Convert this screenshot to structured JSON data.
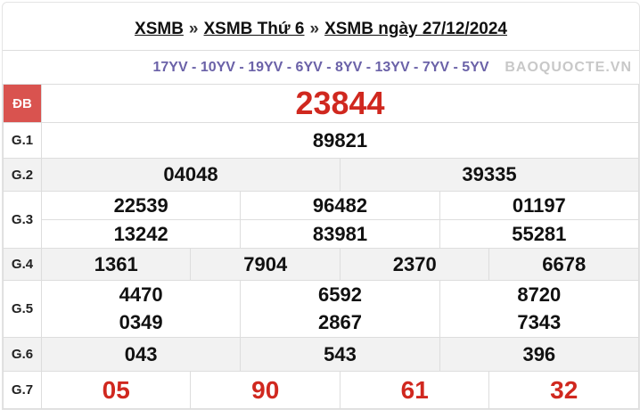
{
  "breadcrumb": {
    "items": [
      "XSMB",
      "XSMB Thứ 6",
      "XSMB ngày 27/12/2024"
    ],
    "separator": "»"
  },
  "codes": "17YV - 10YV - 19YV - 6YV - 8YV - 13YV - 7YV - 5YV",
  "prizes": {
    "db": {
      "label": "ĐB",
      "values": [
        "23844"
      ]
    },
    "g1": {
      "label": "G.1",
      "values": [
        "89821"
      ]
    },
    "g2": {
      "label": "G.2",
      "values": [
        "04048",
        "39335"
      ]
    },
    "g3": {
      "label": "G.3",
      "values": [
        "22539",
        "96482",
        "01197",
        "13242",
        "83981",
        "55281"
      ]
    },
    "g4": {
      "label": "G.4",
      "values": [
        "1361",
        "7904",
        "2370",
        "6678"
      ]
    },
    "g5": {
      "label": "G.5",
      "values": [
        "4470",
        "6592",
        "8720",
        "0349",
        "2867",
        "7343"
      ]
    },
    "g6": {
      "label": "G.6",
      "values": [
        "043",
        "543",
        "396"
      ]
    },
    "g7": {
      "label": "G.7",
      "values": [
        "05",
        "90",
        "61",
        "32"
      ]
    }
  },
  "watermark": "BAOQUOCTE.VN",
  "colors": {
    "accent": "#d0281f",
    "codes": "#6b62a8",
    "label_bg": "#d9534f"
  }
}
